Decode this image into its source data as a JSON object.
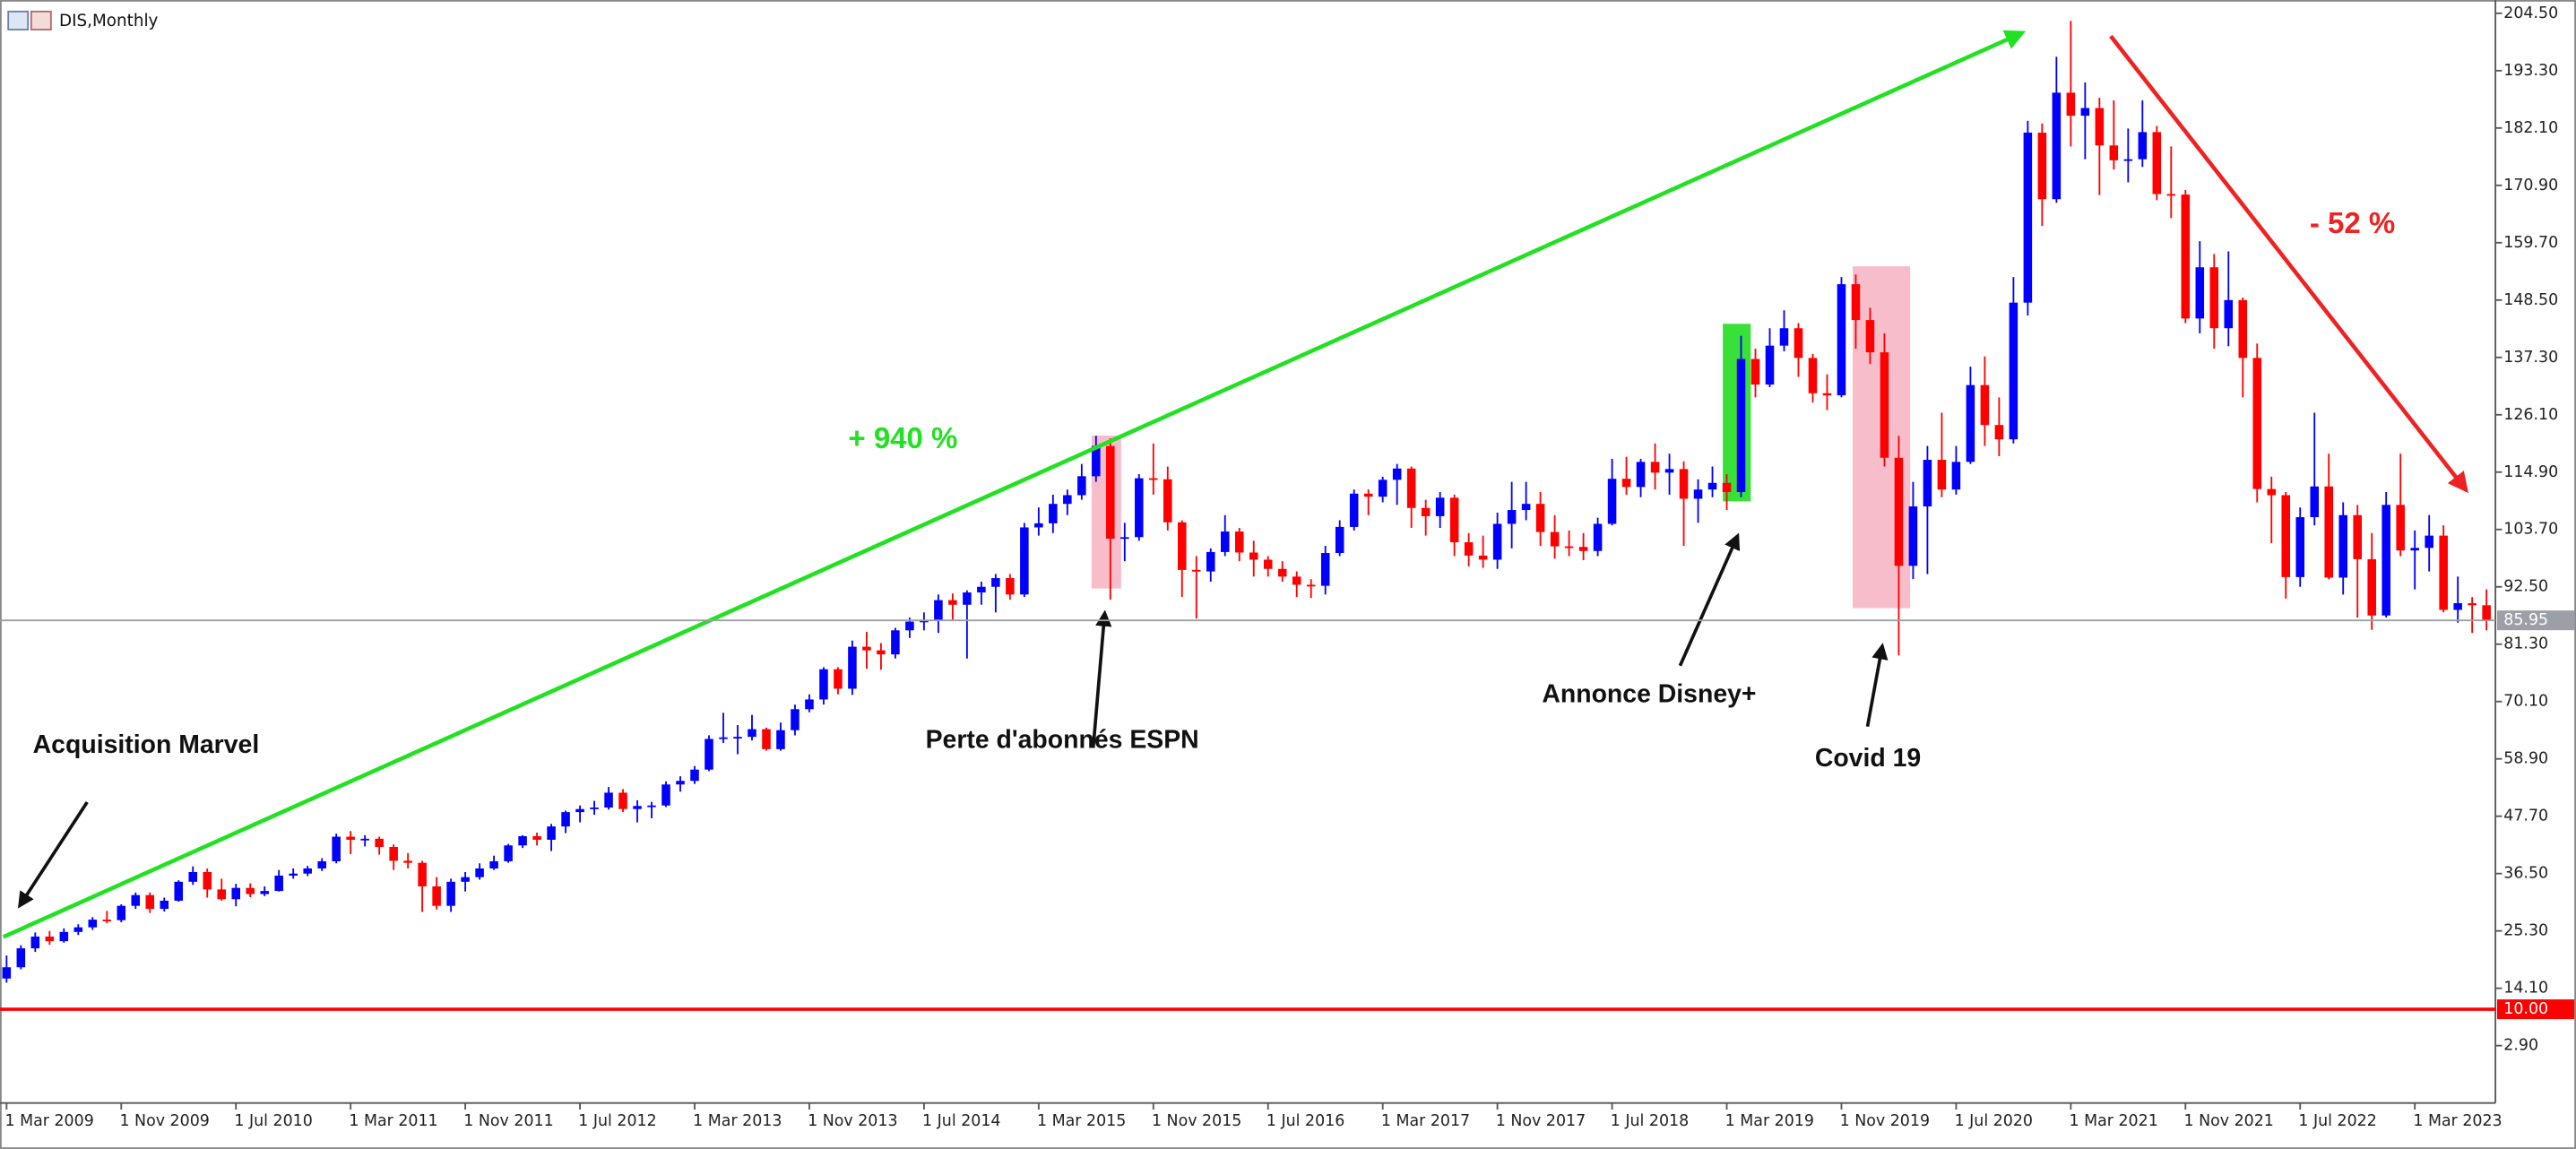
{
  "chart_data": {
    "type": "candlestick",
    "title": "DIS,Monthly",
    "up_color": "#0000ff",
    "down_color": "#ff0000",
    "ylim": [
      -8.3,
      207.1
    ],
    "yticks": [
      {
        "value": 2.9,
        "label": "2.90"
      },
      {
        "value": 14.1,
        "label": "14.10"
      },
      {
        "value": 25.3,
        "label": "25.30"
      },
      {
        "value": 36.5,
        "label": "36.50"
      },
      {
        "value": 47.7,
        "label": "47.70"
      },
      {
        "value": 58.9,
        "label": "58.90"
      },
      {
        "value": 70.1,
        "label": "70.10"
      },
      {
        "value": 81.3,
        "label": "81.30"
      },
      {
        "value": 92.5,
        "label": "92.50"
      },
      {
        "value": 103.7,
        "label": "103.70"
      },
      {
        "value": 114.9,
        "label": "114.90"
      },
      {
        "value": 126.1,
        "label": "126.10"
      },
      {
        "value": 137.3,
        "label": "137.30"
      },
      {
        "value": 148.5,
        "label": "148.50"
      },
      {
        "value": 159.7,
        "label": "159.70"
      },
      {
        "value": 170.9,
        "label": "170.90"
      },
      {
        "value": 182.1,
        "label": "182.10"
      },
      {
        "value": 193.3,
        "label": "193.30"
      },
      {
        "value": 204.5,
        "label": "204.50"
      }
    ],
    "hlines": [
      {
        "value": 85.95,
        "label": "85.95",
        "color": "#9aa0a6"
      },
      {
        "value": 10,
        "label": "10.00",
        "color": "#ff0000"
      }
    ],
    "annotations": [
      {
        "text": "+ 940 %",
        "color": "#22e022"
      },
      {
        "text": "- 52 %",
        "color": "#ee2222"
      },
      {
        "text": "Acquisition Marvel",
        "color": "#111111"
      },
      {
        "text": "Perte d'abonnés ESPN",
        "color": "#111111"
      },
      {
        "text": "Annonce Disney+",
        "color": "#111111"
      },
      {
        "text": "Covid 19",
        "color": "#111111"
      }
    ],
    "categories": [
      "1 Mar 2009",
      null,
      null,
      null,
      null,
      null,
      null,
      null,
      "1 Nov 2009",
      null,
      null,
      null,
      null,
      null,
      null,
      null,
      "1 Jul 2010",
      null,
      null,
      null,
      null,
      null,
      null,
      null,
      "1 Mar 2011",
      null,
      null,
      null,
      null,
      null,
      null,
      null,
      "1 Nov 2011",
      null,
      null,
      null,
      null,
      null,
      null,
      null,
      "1 Jul 2012",
      null,
      null,
      null,
      null,
      null,
      null,
      null,
      "1 Mar 2013",
      null,
      null,
      null,
      null,
      null,
      null,
      null,
      "1 Nov 2013",
      null,
      null,
      null,
      null,
      null,
      null,
      null,
      "1 Jul 2014",
      null,
      null,
      null,
      null,
      null,
      null,
      null,
      "1 Mar 2015",
      null,
      null,
      null,
      null,
      null,
      null,
      null,
      "1 Nov 2015",
      null,
      null,
      null,
      null,
      null,
      null,
      null,
      "1 Jul 2016",
      null,
      null,
      null,
      null,
      null,
      null,
      null,
      "1 Mar 2017",
      null,
      null,
      null,
      null,
      null,
      null,
      null,
      "1 Nov 2017",
      null,
      null,
      null,
      null,
      null,
      null,
      null,
      "1 Jul 2018",
      null,
      null,
      null,
      null,
      null,
      null,
      null,
      "1 Mar 2019",
      null,
      null,
      null,
      null,
      null,
      null,
      null,
      "1 Nov 2019",
      null,
      null,
      null,
      null,
      null,
      null,
      null,
      "1 Jul 2020",
      null,
      null,
      null,
      null,
      null,
      null,
      null,
      "1 Mar 2021",
      null,
      null,
      null,
      null,
      null,
      null,
      null,
      "1 Nov 2021",
      null,
      null,
      null,
      null,
      null,
      null,
      null,
      "1 Jul 2022",
      null,
      null,
      null,
      null,
      null,
      null,
      null,
      "1 Mar 2023",
      null,
      null,
      null,
      null,
      null
    ],
    "ohlc": [
      [
        16.0,
        20.5,
        15.2,
        18.2
      ],
      [
        18.2,
        22.5,
        17.8,
        21.9
      ],
      [
        21.9,
        25.0,
        21.2,
        24.2
      ],
      [
        24.2,
        25.3,
        22.6,
        23.3
      ],
      [
        23.3,
        25.8,
        23.0,
        25.1
      ],
      [
        25.1,
        26.6,
        24.5,
        26.0
      ],
      [
        26.0,
        28.0,
        25.5,
        27.5
      ],
      [
        27.5,
        29.2,
        26.8,
        27.4
      ],
      [
        27.4,
        30.5,
        27.0,
        30.2
      ],
      [
        30.2,
        32.8,
        29.6,
        32.3
      ],
      [
        32.3,
        32.8,
        28.8,
        29.6
      ],
      [
        29.6,
        31.8,
        29.1,
        31.2
      ],
      [
        31.2,
        35.2,
        31.0,
        34.9
      ],
      [
        34.9,
        37.9,
        34.3,
        36.8
      ],
      [
        36.8,
        37.5,
        31.8,
        33.4
      ],
      [
        33.4,
        35.5,
        31.2,
        31.5
      ],
      [
        31.5,
        34.5,
        30.1,
        33.7
      ],
      [
        33.7,
        34.6,
        31.9,
        32.5
      ],
      [
        32.5,
        34.0,
        32.1,
        33.1
      ],
      [
        33.1,
        37.2,
        33.0,
        36.1
      ],
      [
        36.1,
        37.5,
        35.5,
        36.5
      ],
      [
        36.5,
        38.0,
        36.0,
        37.5
      ],
      [
        37.5,
        39.5,
        37.0,
        38.9
      ],
      [
        38.9,
        44.3,
        38.5,
        43.7
      ],
      [
        43.7,
        44.8,
        40.3,
        43.1
      ],
      [
        43.1,
        44.0,
        41.8,
        43.3
      ],
      [
        43.3,
        43.7,
        40.2,
        41.7
      ],
      [
        41.7,
        42.2,
        37.2,
        39.0
      ],
      [
        39.0,
        40.5,
        37.5,
        38.6
      ],
      [
        38.6,
        39.0,
        29.0,
        34.0
      ],
      [
        34.0,
        35.8,
        29.5,
        30.2
      ],
      [
        30.2,
        35.5,
        29.0,
        34.9
      ],
      [
        34.9,
        36.8,
        33.0,
        35.8
      ],
      [
        35.8,
        38.5,
        35.3,
        37.5
      ],
      [
        37.5,
        40.0,
        37.2,
        38.9
      ],
      [
        38.9,
        42.3,
        38.6,
        42.0
      ],
      [
        42.0,
        44.0,
        41.5,
        43.8
      ],
      [
        43.8,
        44.5,
        42.0,
        43.1
      ],
      [
        43.1,
        46.2,
        40.9,
        45.7
      ],
      [
        45.7,
        48.8,
        44.4,
        48.5
      ],
      [
        48.5,
        49.8,
        46.5,
        49.1
      ],
      [
        49.1,
        50.7,
        48.0,
        49.4
      ],
      [
        49.4,
        53.4,
        49.0,
        52.3
      ],
      [
        52.3,
        53.0,
        48.5,
        49.1
      ],
      [
        49.1,
        50.8,
        46.5,
        49.7
      ],
      [
        49.7,
        50.5,
        47.3,
        49.8
      ],
      [
        49.8,
        54.5,
        49.5,
        53.9
      ],
      [
        53.9,
        55.5,
        52.5,
        54.6
      ],
      [
        54.6,
        57.5,
        54.0,
        56.8
      ],
      [
        56.8,
        63.5,
        56.5,
        62.8
      ],
      [
        62.8,
        67.9,
        62.0,
        63.1
      ],
      [
        63.1,
        65.5,
        59.8,
        63.2
      ],
      [
        63.2,
        67.5,
        62.5,
        64.7
      ],
      [
        64.7,
        65.0,
        60.5,
        60.8
      ],
      [
        60.8,
        66.0,
        60.5,
        64.5
      ],
      [
        64.5,
        69.5,
        63.5,
        68.6
      ],
      [
        68.6,
        71.5,
        68.0,
        70.5
      ],
      [
        70.5,
        76.8,
        69.5,
        76.4
      ],
      [
        76.4,
        76.8,
        71.5,
        72.6
      ],
      [
        72.6,
        82.0,
        71.4,
        80.8
      ],
      [
        80.8,
        83.7,
        76.5,
        80.1
      ],
      [
        80.1,
        81.5,
        76.3,
        79.3
      ],
      [
        79.3,
        84.5,
        78.5,
        84.0
      ],
      [
        84.0,
        86.5,
        82.5,
        85.7
      ],
      [
        85.7,
        87.5,
        84.0,
        85.9
      ],
      [
        85.9,
        91.0,
        83.5,
        89.9
      ],
      [
        89.9,
        91.2,
        85.8,
        89.0
      ],
      [
        89.0,
        91.8,
        78.5,
        91.4
      ],
      [
        91.4,
        93.5,
        89.0,
        92.5
      ],
      [
        92.5,
        95.0,
        87.5,
        94.2
      ],
      [
        94.2,
        95.0,
        90.0,
        91.0
      ],
      [
        91.0,
        105.0,
        90.5,
        104.1
      ],
      [
        104.1,
        108.0,
        102.5,
        104.9
      ],
      [
        104.9,
        110.5,
        103.0,
        108.7
      ],
      [
        108.7,
        111.5,
        106.5,
        110.4
      ],
      [
        110.4,
        116.5,
        109.5,
        114.1
      ],
      [
        114.1,
        122.0,
        113.0,
        120.0
      ],
      [
        120.0,
        121.5,
        90.0,
        101.9
      ],
      [
        101.9,
        105.0,
        97.5,
        102.2
      ],
      [
        102.2,
        114.5,
        101.5,
        113.7
      ],
      [
        113.7,
        120.5,
        110.5,
        113.5
      ],
      [
        113.5,
        116.0,
        103.5,
        105.1
      ],
      [
        105.1,
        105.5,
        90.5,
        95.8
      ],
      [
        95.8,
        98.5,
        86.3,
        95.5
      ],
      [
        95.5,
        100.0,
        93.5,
        99.3
      ],
      [
        99.3,
        106.5,
        98.5,
        103.3
      ],
      [
        103.3,
        104.0,
        97.5,
        99.2
      ],
      [
        99.2,
        101.5,
        94.5,
        97.8
      ],
      [
        97.8,
        98.5,
        94.5,
        96.0
      ],
      [
        96.0,
        97.5,
        93.5,
        94.5
      ],
      [
        94.5,
        95.5,
        90.5,
        92.9
      ],
      [
        92.9,
        94.0,
        90.3,
        92.7
      ],
      [
        92.7,
        100.5,
        91.0,
        99.1
      ],
      [
        99.1,
        105.5,
        98.5,
        104.2
      ],
      [
        104.2,
        111.5,
        103.5,
        110.7
      ],
      [
        110.7,
        111.5,
        106.5,
        110.1
      ],
      [
        110.1,
        114.0,
        109.0,
        113.4
      ],
      [
        113.4,
        116.5,
        108.5,
        115.6
      ],
      [
        115.6,
        116.0,
        104.0,
        107.9
      ],
      [
        107.9,
        109.5,
        102.5,
        106.3
      ],
      [
        106.3,
        111.0,
        104.0,
        109.9
      ],
      [
        109.9,
        110.5,
        98.5,
        101.2
      ],
      [
        101.2,
        103.0,
        96.5,
        98.6
      ],
      [
        98.6,
        102.5,
        96.2,
        97.8
      ],
      [
        97.8,
        107.0,
        96.0,
        104.8
      ],
      [
        104.8,
        113.0,
        100.0,
        107.5
      ],
      [
        107.5,
        113.0,
        105.5,
        108.7
      ],
      [
        108.7,
        111.0,
        100.5,
        103.2
      ],
      [
        103.2,
        106.5,
        98.0,
        100.4
      ],
      [
        100.4,
        103.5,
        98.5,
        100.3
      ],
      [
        100.3,
        103.0,
        97.7,
        99.5
      ],
      [
        99.5,
        106.0,
        98.5,
        104.8
      ],
      [
        104.8,
        117.5,
        104.5,
        113.6
      ],
      [
        113.6,
        117.9,
        110.5,
        112.0
      ],
      [
        112.0,
        117.5,
        110.0,
        116.9
      ],
      [
        116.9,
        120.5,
        111.5,
        114.8
      ],
      [
        114.8,
        118.5,
        110.5,
        115.5
      ],
      [
        115.5,
        117.0,
        100.5,
        109.7
      ],
      [
        109.7,
        113.5,
        105.0,
        111.5
      ],
      [
        111.5,
        116.0,
        110.0,
        112.8
      ],
      [
        112.8,
        114.5,
        107.5,
        111.0
      ],
      [
        111.0,
        141.5,
        110.0,
        137.0
      ],
      [
        137.0,
        139.0,
        129.5,
        132.0
      ],
      [
        132.0,
        143.0,
        131.5,
        139.6
      ],
      [
        139.6,
        146.5,
        138.5,
        143.0
      ],
      [
        143.0,
        144.0,
        133.5,
        137.2
      ],
      [
        137.2,
        138.0,
        128.5,
        130.3
      ],
      [
        130.3,
        134.0,
        127.0,
        129.9
      ],
      [
        129.9,
        153.0,
        129.5,
        151.6
      ],
      [
        151.6,
        153.5,
        139.0,
        144.6
      ],
      [
        144.6,
        147.0,
        136.0,
        138.3
      ],
      [
        138.3,
        142.0,
        116.0,
        117.7
      ],
      [
        117.7,
        122.0,
        79.1,
        96.6
      ],
      [
        96.6,
        113.0,
        94.0,
        108.2
      ],
      [
        108.2,
        120.0,
        95.0,
        117.3
      ],
      [
        117.3,
        126.5,
        110.0,
        111.5
      ],
      [
        111.5,
        120.0,
        110.5,
        116.9
      ],
      [
        116.9,
        135.5,
        116.5,
        131.9
      ],
      [
        131.9,
        137.5,
        120.0,
        124.1
      ],
      [
        124.1,
        129.5,
        118.0,
        121.3
      ],
      [
        121.3,
        153.0,
        120.5,
        148.0
      ],
      [
        148.0,
        183.5,
        145.5,
        181.2
      ],
      [
        181.2,
        183.0,
        163.0,
        168.2
      ],
      [
        168.2,
        196.0,
        167.5,
        189.0
      ],
      [
        189.0,
        203.0,
        178.5,
        184.5
      ],
      [
        184.5,
        191.0,
        176.0,
        186.0
      ],
      [
        186.0,
        188.0,
        169.0,
        178.7
      ],
      [
        178.7,
        187.5,
        174.0,
        175.8
      ],
      [
        175.8,
        182.0,
        171.5,
        176.0
      ],
      [
        176.0,
        187.5,
        174.5,
        181.3
      ],
      [
        181.3,
        182.5,
        168.0,
        169.2
      ],
      [
        169.2,
        178.5,
        164.5,
        169.1
      ],
      [
        169.1,
        170.0,
        144.0,
        144.9
      ],
      [
        144.9,
        160.0,
        142.0,
        154.9
      ],
      [
        154.9,
        157.5,
        139.0,
        143.0
      ],
      [
        143.0,
        158.0,
        139.5,
        148.5
      ],
      [
        148.5,
        149.0,
        129.5,
        137.2
      ],
      [
        137.2,
        140.0,
        109.0,
        111.6
      ],
      [
        111.6,
        114.0,
        101.0,
        110.4
      ],
      [
        110.4,
        111.0,
        90.2,
        94.4
      ],
      [
        94.4,
        108.0,
        92.5,
        106.1
      ],
      [
        106.1,
        126.5,
        104.5,
        112.1
      ],
      [
        112.1,
        118.5,
        94.0,
        94.3
      ],
      [
        94.3,
        109.0,
        91.0,
        106.5
      ],
      [
        106.5,
        108.5,
        86.5,
        97.9
      ],
      [
        97.9,
        103.0,
        84.1,
        86.9
      ],
      [
        86.9,
        111.0,
        86.5,
        108.5
      ],
      [
        108.5,
        118.5,
        98.5,
        99.6
      ],
      [
        99.6,
        103.5,
        92.0,
        100.1
      ],
      [
        100.1,
        106.5,
        95.5,
        102.5
      ],
      [
        102.5,
        104.5,
        87.5,
        88.0
      ],
      [
        88.0,
        94.5,
        85.5,
        89.3
      ],
      [
        89.3,
        90.5,
        83.5,
        88.9
      ],
      [
        88.9,
        92.0,
        84.0,
        85.95
      ]
    ]
  }
}
